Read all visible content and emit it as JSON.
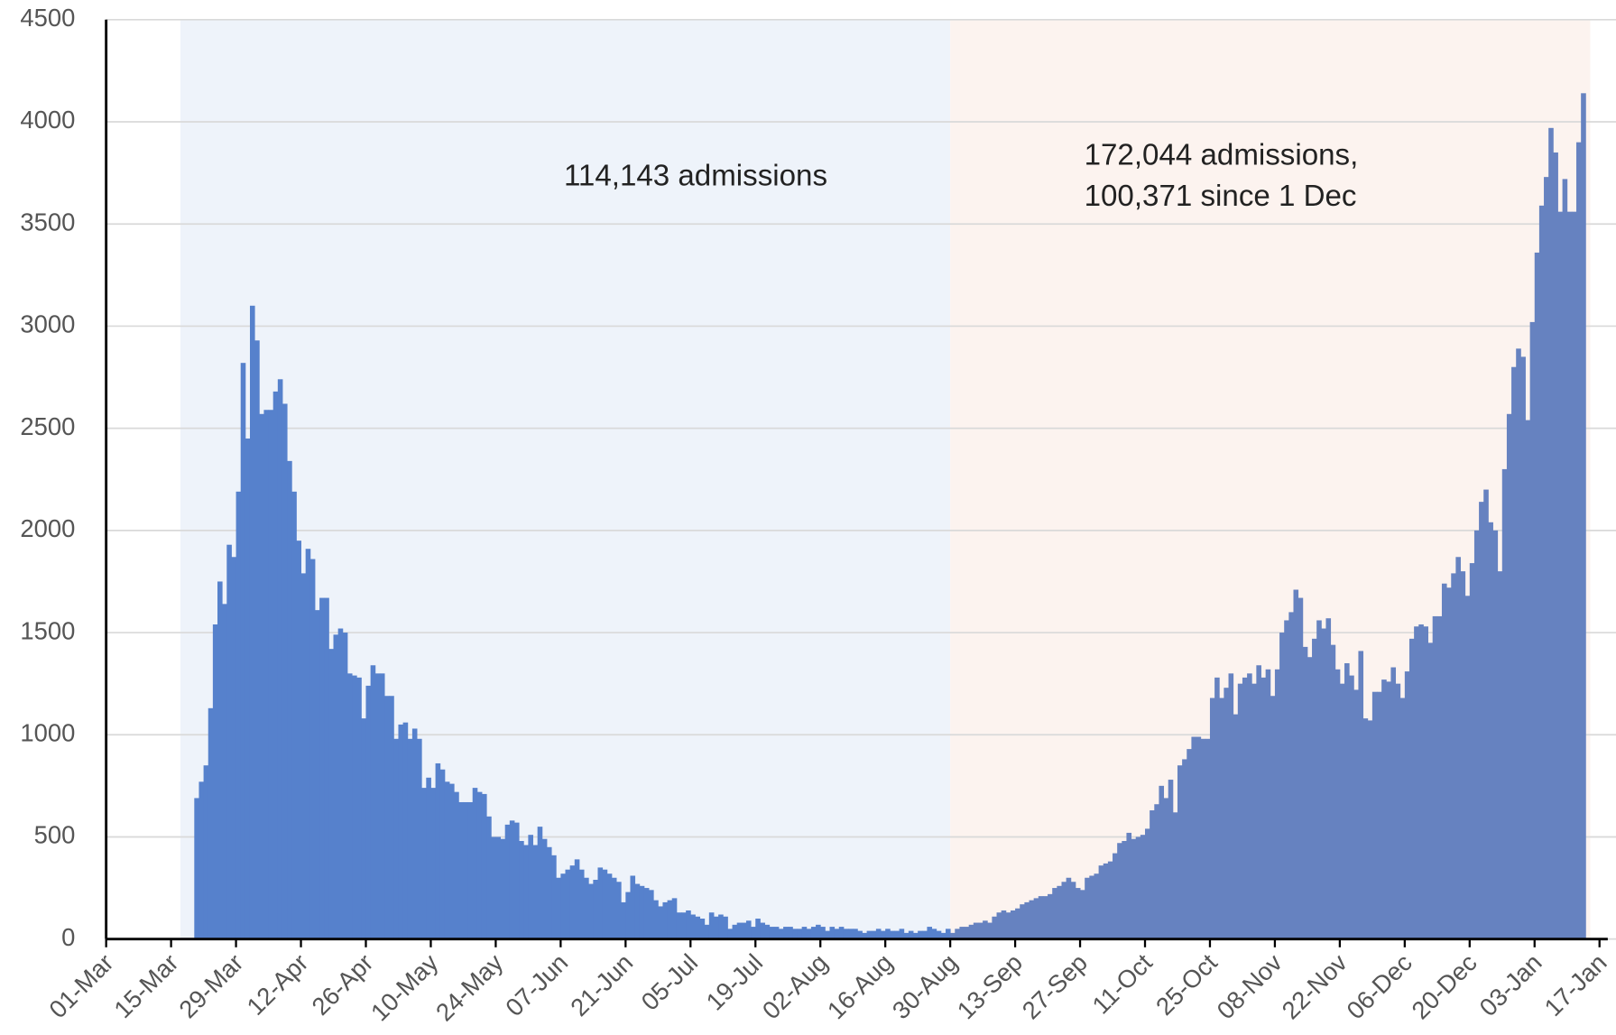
{
  "chart_data": {
    "type": "bar",
    "categories": [
      "01-Mar",
      null,
      null,
      null,
      null,
      null,
      null,
      null,
      null,
      null,
      null,
      null,
      null,
      null,
      "15-Mar",
      null,
      null,
      null,
      null,
      null,
      null,
      null,
      null,
      null,
      null,
      null,
      null,
      null,
      "29-Mar",
      null,
      null,
      null,
      null,
      null,
      null,
      null,
      null,
      null,
      null,
      null,
      null,
      null,
      "12-Apr",
      null,
      null,
      null,
      null,
      null,
      null,
      null,
      null,
      null,
      null,
      null,
      null,
      null,
      "26-Apr",
      null,
      null,
      null,
      null,
      null,
      null,
      null,
      null,
      null,
      null,
      null,
      null,
      null,
      "10-May",
      null,
      null,
      null,
      null,
      null,
      null,
      null,
      null,
      null,
      null,
      null,
      null,
      null,
      "24-May",
      null,
      null,
      null,
      null,
      null,
      null,
      null,
      null,
      null,
      null,
      null,
      null,
      null,
      "07-Jun",
      null,
      null,
      null,
      null,
      null,
      null,
      null,
      null,
      null,
      null,
      null,
      null,
      null,
      "21-Jun",
      null,
      null,
      null,
      null,
      null,
      null,
      null,
      null,
      null,
      null,
      null,
      null,
      null,
      "05-Jul",
      null,
      null,
      null,
      null,
      null,
      null,
      null,
      null,
      null,
      null,
      null,
      null,
      null,
      "19-Jul",
      null,
      null,
      null,
      null,
      null,
      null,
      null,
      null,
      null,
      null,
      null,
      null,
      null,
      "02-Aug",
      null,
      null,
      null,
      null,
      null,
      null,
      null,
      null,
      null,
      null,
      null,
      null,
      null,
      "16-Aug",
      null,
      null,
      null,
      null,
      null,
      null,
      null,
      null,
      null,
      null,
      null,
      null,
      null,
      "30-Aug",
      null,
      null,
      null,
      null,
      null,
      null,
      null,
      null,
      null,
      null,
      null,
      null,
      null,
      "13-Sep",
      null,
      null,
      null,
      null,
      null,
      null,
      null,
      null,
      null,
      null,
      null,
      null,
      null,
      "27-Sep",
      null,
      null,
      null,
      null,
      null,
      null,
      null,
      null,
      null,
      null,
      null,
      null,
      null,
      "11-Oct",
      null,
      null,
      null,
      null,
      null,
      null,
      null,
      null,
      null,
      null,
      null,
      null,
      null,
      "25-Oct",
      null,
      null,
      null,
      null,
      null,
      null,
      null,
      null,
      null,
      null,
      null,
      null,
      null,
      "08-Nov",
      null,
      null,
      null,
      null,
      null,
      null,
      null,
      null,
      null,
      null,
      null,
      null,
      null,
      "22-Nov",
      null,
      null,
      null,
      null,
      null,
      null,
      null,
      null,
      null,
      null,
      null,
      null,
      null,
      "06-Dec",
      null,
      null,
      null,
      null,
      null,
      null,
      null,
      null,
      null,
      null,
      null,
      null,
      null,
      "20-Dec",
      null,
      null,
      null,
      null,
      null,
      null,
      null,
      null,
      null,
      null,
      null,
      null,
      null,
      "03-Jan",
      null,
      null,
      null,
      null,
      null,
      null,
      null,
      null,
      null,
      null,
      null,
      null,
      null,
      "17-Jan"
    ],
    "values": [
      null,
      null,
      null,
      null,
      null,
      null,
      null,
      null,
      null,
      null,
      null,
      null,
      null,
      null,
      null,
      null,
      null,
      null,
      null,
      690,
      770,
      850,
      1130,
      1540,
      1750,
      1640,
      1930,
      1870,
      2190,
      2820,
      2450,
      3100,
      2930,
      2570,
      2590,
      2590,
      2680,
      2740,
      2620,
      2340,
      2190,
      1950,
      1790,
      1910,
      1860,
      1610,
      1670,
      1670,
      1420,
      1490,
      1520,
      1500,
      1300,
      1290,
      1280,
      1080,
      1240,
      1340,
      1300,
      1300,
      1190,
      1190,
      980,
      1050,
      1060,
      980,
      1030,
      980,
      740,
      790,
      740,
      860,
      830,
      770,
      760,
      720,
      670,
      670,
      670,
      740,
      720,
      710,
      600,
      500,
      500,
      490,
      560,
      580,
      570,
      480,
      460,
      510,
      460,
      550,
      490,
      450,
      410,
      300,
      320,
      340,
      360,
      390,
      340,
      300,
      270,
      290,
      350,
      340,
      320,
      300,
      280,
      180,
      230,
      310,
      270,
      260,
      250,
      240,
      190,
      160,
      180,
      190,
      200,
      130,
      130,
      140,
      120,
      110,
      100,
      70,
      130,
      110,
      120,
      110,
      50,
      70,
      80,
      80,
      90,
      60,
      100,
      80,
      70,
      60,
      60,
      50,
      60,
      60,
      50,
      50,
      60,
      50,
      60,
      70,
      60,
      40,
      60,
      50,
      60,
      50,
      50,
      50,
      40,
      30,
      40,
      40,
      50,
      40,
      50,
      40,
      40,
      50,
      30,
      40,
      30,
      40,
      40,
      60,
      50,
      40,
      30,
      50,
      30,
      50,
      60,
      60,
      70,
      80,
      80,
      90,
      80,
      110,
      130,
      140,
      130,
      140,
      150,
      170,
      180,
      190,
      200,
      210,
      210,
      220,
      250,
      260,
      280,
      300,
      280,
      250,
      240,
      300,
      310,
      320,
      360,
      370,
      380,
      420,
      470,
      480,
      520,
      490,
      500,
      510,
      540,
      630,
      660,
      750,
      690,
      780,
      620,
      850,
      880,
      930,
      990,
      990,
      980,
      980,
      1180,
      1280,
      1180,
      1230,
      1300,
      1100,
      1250,
      1280,
      1300,
      1250,
      1340,
      1280,
      1320,
      1190,
      1320,
      1500,
      1560,
      1600,
      1710,
      1670,
      1430,
      1380,
      1470,
      1560,
      1520,
      1570,
      1440,
      1320,
      1250,
      1350,
      1290,
      1220,
      1410,
      1080,
      1070,
      1210,
      1210,
      1270,
      1260,
      1330,
      1250,
      1180,
      1310,
      1470,
      1530,
      1540,
      1530,
      1450,
      1580,
      1580,
      1740,
      1720,
      1790,
      1870,
      1800,
      1680,
      1840,
      2000,
      2140,
      2200,
      2040,
      2000,
      1800,
      2300,
      2570,
      2800,
      2890,
      2850,
      2540,
      3020,
      3360,
      3590,
      3730,
      3970,
      3850,
      3560,
      3720,
      3560,
      3560,
      3900,
      4140,
      null,
      null,
      null,
      null
    ],
    "regions": [
      {
        "from": 16,
        "to": 182,
        "color": "#eef3fa",
        "bar_color": "#5681cc",
        "label": [
          "114,143 admissions"
        ]
      },
      {
        "from": 182,
        "to": 320,
        "color": "#fcf3ef",
        "bar_color": "#6682c0",
        "label": [
          "172,044 admissions,",
          "100,371 since 1 Dec"
        ]
      }
    ],
    "ylim": [
      0,
      4500
    ],
    "yticks": [
      0,
      500,
      1000,
      1500,
      2000,
      2500,
      3000,
      3500,
      4000,
      4500
    ],
    "grid": true
  }
}
